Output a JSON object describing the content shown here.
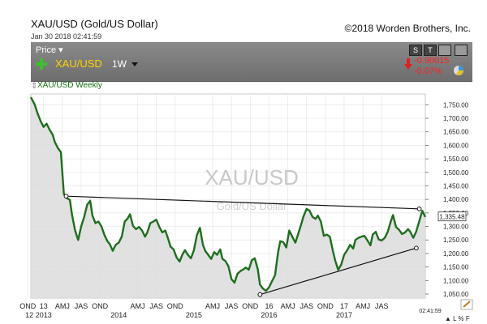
{
  "header": {
    "title": "XAU/USD (Gold/US Dollar)",
    "datetime": "Jan 30 2018 02:41:59",
    "copyright": "©2018 Worden Brothers, Inc."
  },
  "toolbar": {
    "price_label": "Price",
    "symbol": "XAU/USD",
    "period": "1W",
    "change_abs": "-0.90015",
    "change_pct": "-0.07%",
    "btn_s": "S",
    "btn_t": "T"
  },
  "series_tag": "XAU/USD Weekly",
  "watermark": {
    "symbol": "XAU/USD",
    "name": "Gold/US Dollar"
  },
  "footer_time": "02:41:59",
  "last_price_label": "1,335.48",
  "colors": {
    "line": "#1e6e1e",
    "area": "#dcdcdc",
    "toolbar": "#7d7d7d",
    "change": "#ff2020"
  },
  "chart_data": {
    "type": "area",
    "ylim": [
      1035,
      1790
    ],
    "xlim": [
      2012.83,
      2018.08
    ],
    "y_ticks": [
      "1,750.00",
      "1,700.00",
      "1,650.00",
      "1,600.00",
      "1,550.00",
      "1,500.00",
      "1,450.00",
      "1,400.00",
      "1,350.00",
      "1,300.00",
      "1,250.00",
      "1,200.00",
      "1,150.00",
      "1,100.00",
      "1,050.00"
    ],
    "y_tick_values": [
      1750,
      1700,
      1650,
      1600,
      1550,
      1500,
      1450,
      1400,
      1350,
      1300,
      1250,
      1200,
      1150,
      1100,
      1050
    ],
    "x_month_labels": [
      {
        "t": 2012.79,
        "label": "OND"
      },
      {
        "t": 2013.0,
        "label": "13"
      },
      {
        "t": 2013.25,
        "label": "AMJ"
      },
      {
        "t": 2013.5,
        "label": "JAS"
      },
      {
        "t": 2013.75,
        "label": "OND"
      },
      {
        "t": 2014.25,
        "label": "AMJ"
      },
      {
        "t": 2014.5,
        "label": "JAS"
      },
      {
        "t": 2014.75,
        "label": "OND"
      },
      {
        "t": 2015.25,
        "label": "AMJ"
      },
      {
        "t": 2015.5,
        "label": "JAS"
      },
      {
        "t": 2015.75,
        "label": "OND"
      },
      {
        "t": 2016.0,
        "label": "16"
      },
      {
        "t": 2016.25,
        "label": "AMJ"
      },
      {
        "t": 2016.5,
        "label": "JAS"
      },
      {
        "t": 2016.75,
        "label": "OND"
      },
      {
        "t": 2017.0,
        "label": "17"
      },
      {
        "t": 2017.25,
        "label": "AMJ"
      },
      {
        "t": 2017.5,
        "label": "JAS"
      }
    ],
    "x_year_labels": [
      {
        "t": 2012.81,
        "label": "12"
      },
      {
        "t": 2013.0,
        "label": "2013"
      },
      {
        "t": 2014.0,
        "label": "2014"
      },
      {
        "t": 2015.0,
        "label": "2015"
      },
      {
        "t": 2016.0,
        "label": "2016"
      },
      {
        "t": 2017.0,
        "label": "2017"
      }
    ],
    "grid": true,
    "series": [
      {
        "name": "XAU/USD Weekly",
        "x": [
          2012.83,
          2012.88,
          2012.92,
          2012.96,
          2013.0,
          2013.04,
          2013.08,
          2013.12,
          2013.15,
          2013.19,
          2013.23,
          2013.27,
          2013.31,
          2013.35,
          2013.38,
          2013.42,
          2013.46,
          2013.5,
          2013.54,
          2013.58,
          2013.62,
          2013.65,
          2013.69,
          2013.73,
          2013.77,
          2013.81,
          2013.85,
          2013.88,
          2013.92,
          2013.96,
          2014.0,
          2014.04,
          2014.08,
          2014.12,
          2014.15,
          2014.19,
          2014.23,
          2014.27,
          2014.31,
          2014.35,
          2014.38,
          2014.42,
          2014.46,
          2014.5,
          2014.54,
          2014.58,
          2014.62,
          2014.65,
          2014.69,
          2014.73,
          2014.77,
          2014.81,
          2014.85,
          2014.88,
          2014.92,
          2014.96,
          2015.0,
          2015.04,
          2015.08,
          2015.12,
          2015.15,
          2015.19,
          2015.23,
          2015.27,
          2015.31,
          2015.35,
          2015.38,
          2015.42,
          2015.46,
          2015.5,
          2015.54,
          2015.58,
          2015.62,
          2015.65,
          2015.69,
          2015.73,
          2015.77,
          2015.81,
          2015.85,
          2015.88,
          2015.92,
          2015.96,
          2016.0,
          2016.04,
          2016.08,
          2016.12,
          2016.15,
          2016.19,
          2016.23,
          2016.27,
          2016.31,
          2016.35,
          2016.38,
          2016.42,
          2016.46,
          2016.5,
          2016.54,
          2016.58,
          2016.62,
          2016.65,
          2016.69,
          2016.73,
          2016.77,
          2016.81,
          2016.85,
          2016.88,
          2016.92,
          2016.96,
          2017.0,
          2017.04,
          2017.08,
          2017.12,
          2017.15,
          2017.19,
          2017.23,
          2017.27,
          2017.31,
          2017.35,
          2017.38,
          2017.42,
          2017.46,
          2017.5,
          2017.54,
          2017.58,
          2017.62,
          2017.65,
          2017.69,
          2017.73,
          2017.77,
          2017.81,
          2017.85,
          2017.88,
          2017.92,
          2017.96,
          2018.0,
          2018.04,
          2018.08
        ],
        "values": [
          1778,
          1752,
          1718,
          1690,
          1668,
          1680,
          1658,
          1640,
          1612,
          1590,
          1575,
          1420,
          1405,
          1398,
          1340,
          1285,
          1250,
          1300,
          1335,
          1380,
          1395,
          1340,
          1312,
          1318,
          1300,
          1268,
          1245,
          1235,
          1210,
          1232,
          1240,
          1262,
          1318,
          1330,
          1345,
          1302,
          1290,
          1298,
          1285,
          1262,
          1278,
          1312,
          1318,
          1325,
          1298,
          1278,
          1285,
          1260,
          1225,
          1215,
          1185,
          1170,
          1198,
          1212,
          1195,
          1182,
          1212,
          1268,
          1295,
          1232,
          1210,
          1195,
          1180,
          1205,
          1195,
          1215,
          1180,
          1172,
          1152,
          1105,
          1092,
          1125,
          1135,
          1140,
          1148,
          1140,
          1175,
          1182,
          1142,
          1085,
          1070,
          1062,
          1075,
          1098,
          1120,
          1205,
          1245,
          1242,
          1222,
          1285,
          1262,
          1240,
          1265,
          1300,
          1338,
          1365,
          1358,
          1335,
          1328,
          1340,
          1318,
          1265,
          1270,
          1262,
          1210,
          1175,
          1140,
          1158,
          1195,
          1212,
          1232,
          1218,
          1250,
          1258,
          1262,
          1265,
          1248,
          1230,
          1270,
          1280,
          1252,
          1248,
          1258,
          1280,
          1318,
          1342,
          1298,
          1288,
          1272,
          1278,
          1290,
          1280,
          1258,
          1282,
          1320,
          1358,
          1335
        ]
      }
    ],
    "trendlines": [
      {
        "name": "resistance",
        "x": [
          2013.3,
          2018.0
        ],
        "y": [
          1412,
          1365
        ]
      },
      {
        "name": "support",
        "x": [
          2015.88,
          2017.96
        ],
        "y": [
          1048,
          1220
        ]
      }
    ],
    "last_value": 1335.48
  }
}
